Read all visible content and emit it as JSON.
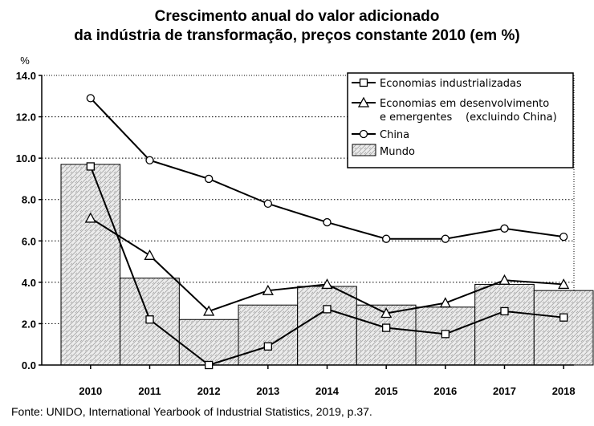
{
  "chart_data": {
    "type": "line",
    "title": "Crescimento anual do valor adicionado",
    "subtitle": "da indústria de transformação, preços constante 2010 (em %)",
    "ylabel": "%",
    "xlabel": "",
    "ylim": [
      0,
      14
    ],
    "yticks": [
      "0.0",
      "2.0",
      "4.0",
      "6.0",
      "8.0",
      "10.0",
      "12.0",
      "14.0"
    ],
    "categories": [
      "2010",
      "2011",
      "2012",
      "2013",
      "2014",
      "2015",
      "2016",
      "2017",
      "2018"
    ],
    "grid": true,
    "legend_position": "top-right",
    "bar_series": {
      "name": "Mundo",
      "values": [
        9.7,
        4.2,
        2.2,
        2.9,
        3.8,
        2.9,
        2.8,
        3.9,
        3.6
      ]
    },
    "series": [
      {
        "name": "Economias industrializadas",
        "marker": "square",
        "values": [
          9.6,
          2.2,
          0.0,
          0.9,
          2.7,
          1.8,
          1.5,
          2.6,
          2.3
        ]
      },
      {
        "name": "Economias em desenvolvimento e emergentes (excluindo China)",
        "marker": "triangle",
        "values": [
          7.1,
          5.3,
          2.6,
          3.6,
          3.9,
          2.5,
          3.0,
          4.1,
          3.9
        ]
      },
      {
        "name": "China",
        "marker": "circle",
        "values": [
          12.9,
          9.9,
          9.0,
          7.8,
          6.9,
          6.1,
          6.1,
          6.6,
          6.2
        ]
      }
    ],
    "legend": {
      "line1": "Economias industrializadas",
      "line2a": "Economias em desenvolvimento",
      "line2b": "e emergentes",
      "line2c": "(excluindo China)",
      "line3": "China",
      "line4": "Mundo"
    }
  },
  "source": "Fonte: UNIDO, International Yearbook of Industrial Statistics, 2019, p.37."
}
